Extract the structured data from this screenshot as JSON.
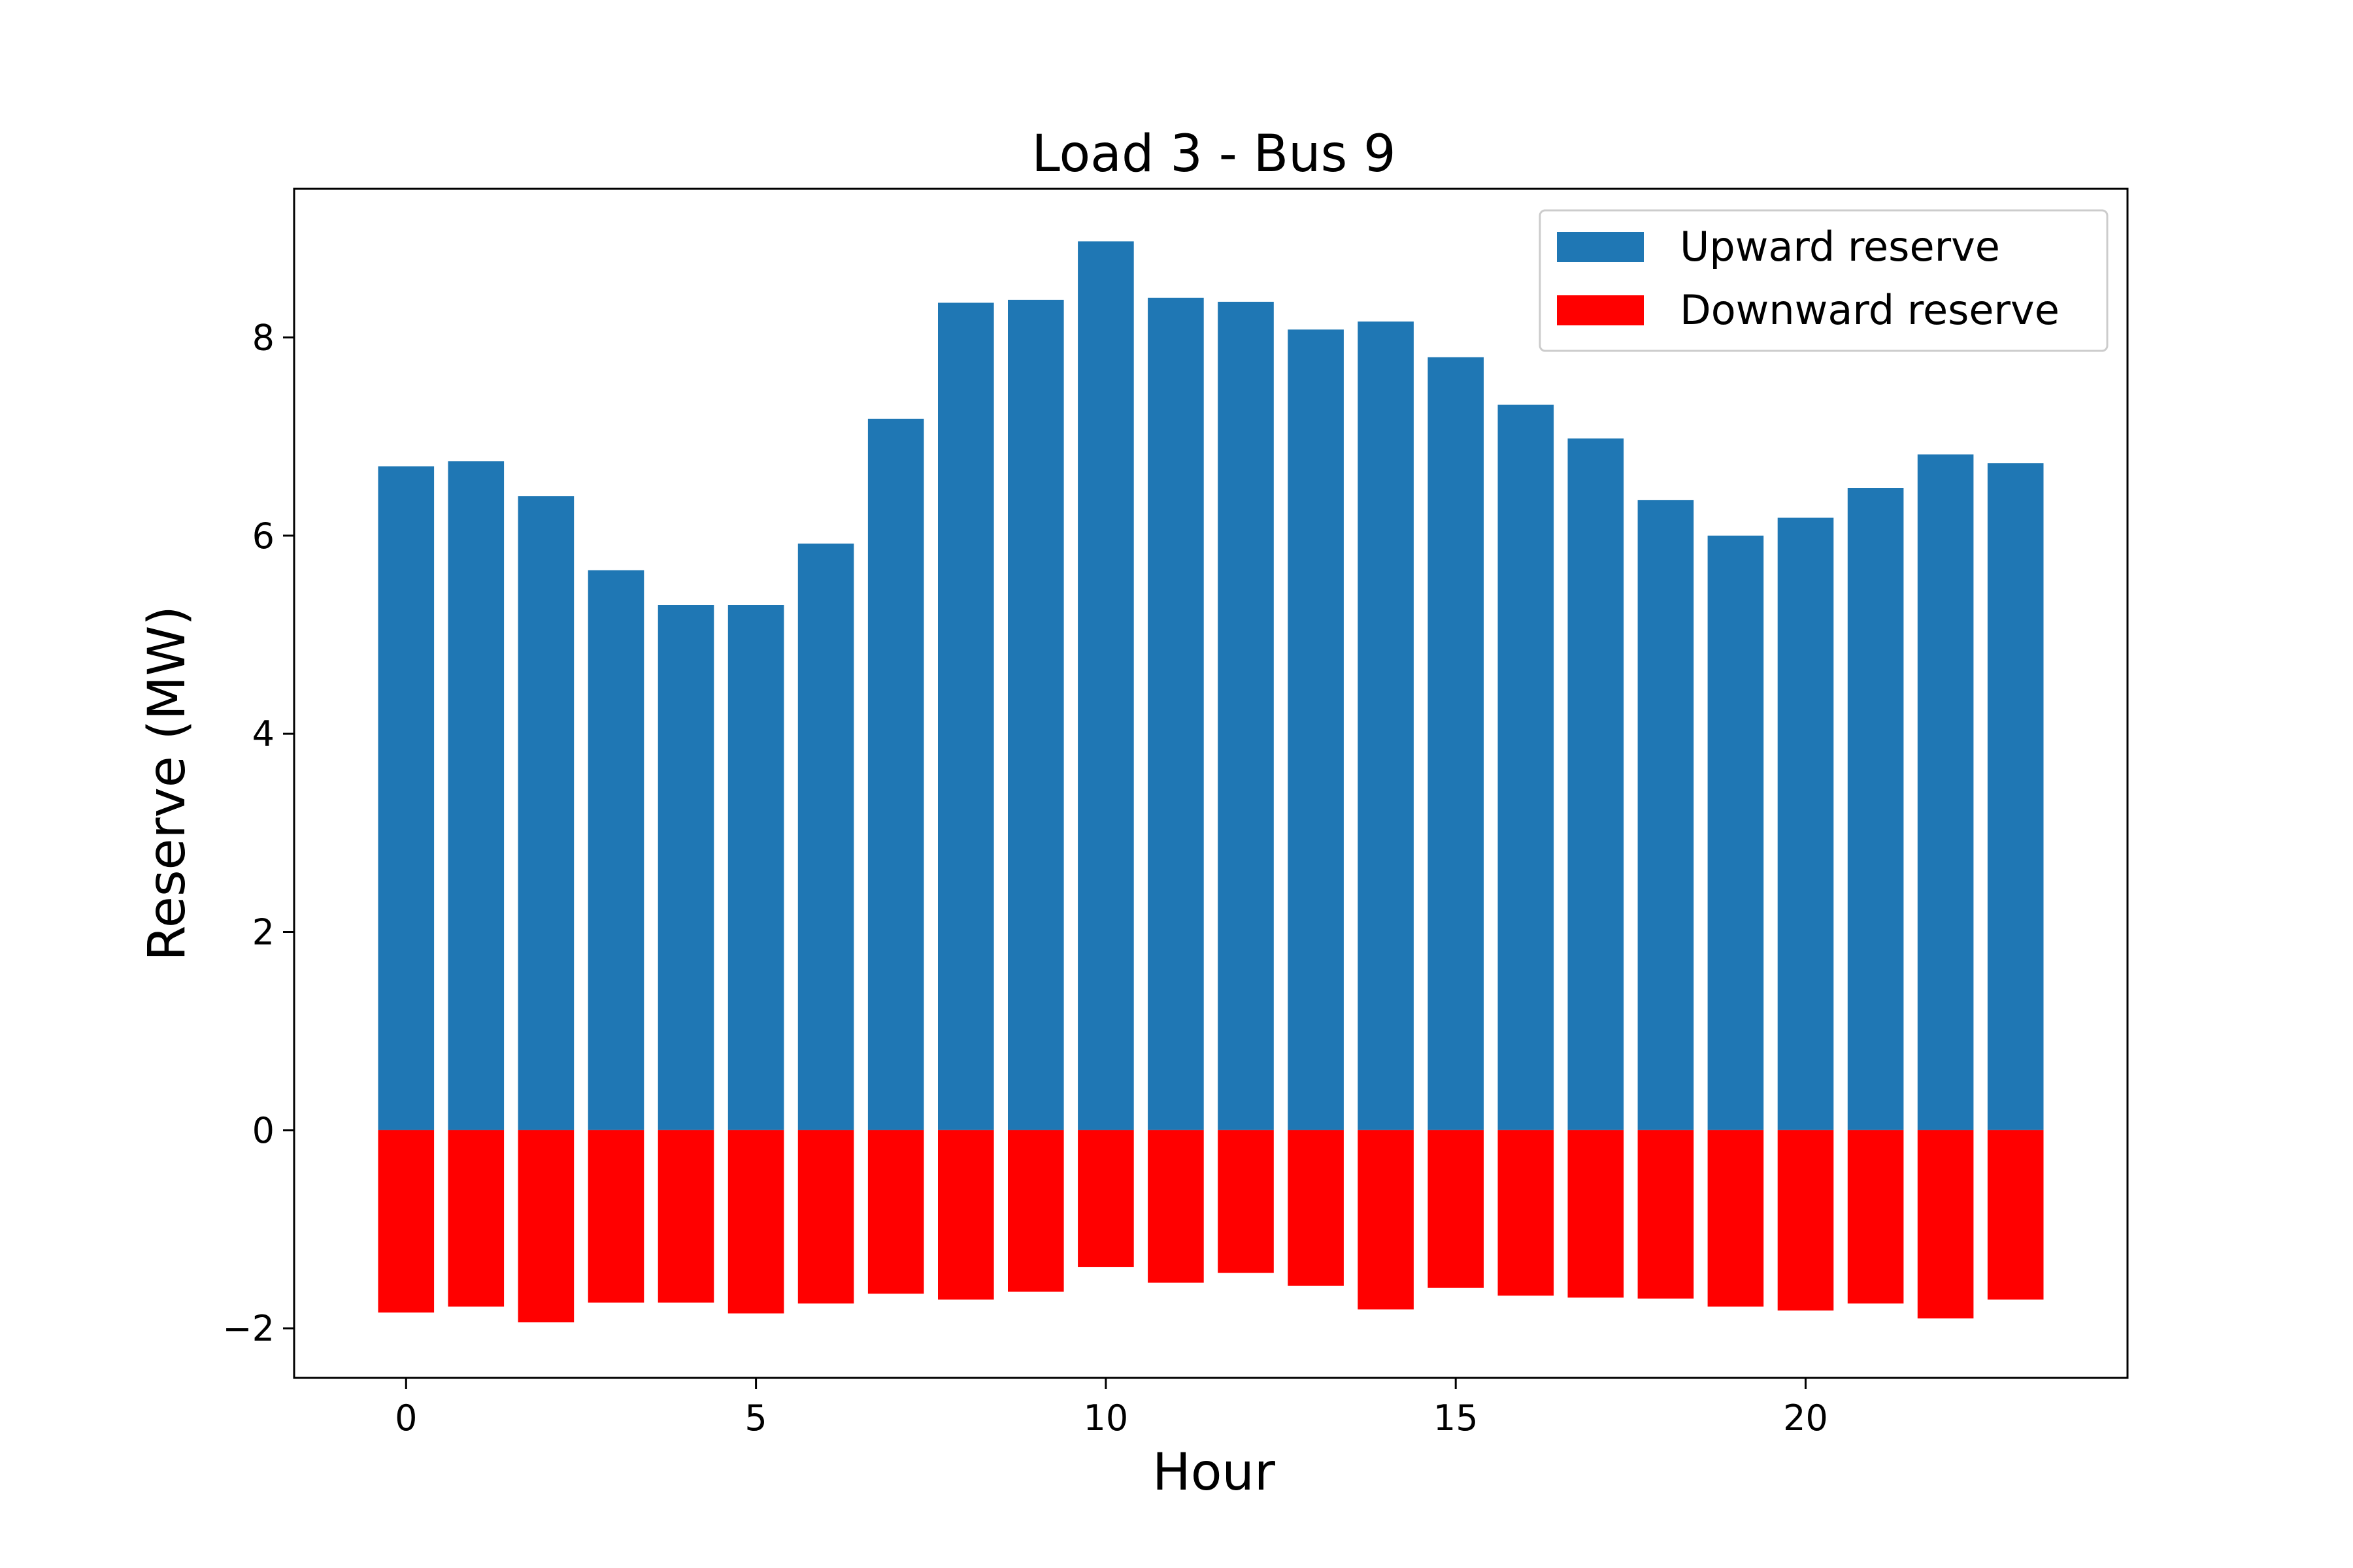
{
  "chart_data": {
    "type": "bar",
    "title": "Load 3 - Bus 9",
    "xlabel": "Hour",
    "ylabel": "Reserve (MW)",
    "x": [
      0,
      1,
      2,
      3,
      4,
      5,
      6,
      7,
      8,
      9,
      10,
      11,
      12,
      13,
      14,
      15,
      16,
      17,
      18,
      19,
      20,
      21,
      22,
      23
    ],
    "xticks": [
      0,
      5,
      10,
      15,
      20
    ],
    "xtick_labels": [
      "0",
      "5",
      "10",
      "15",
      "20"
    ],
    "yticks": [
      -2,
      0,
      2,
      4,
      6,
      8
    ],
    "ytick_labels": [
      "−2",
      "0",
      "2",
      "4",
      "6",
      "8"
    ],
    "xlim": [
      -1.6,
      24.6
    ],
    "ylim": [
      -2.5,
      9.5
    ],
    "grid": false,
    "legend_position": "top-right",
    "series": [
      {
        "name": "Upward reserve",
        "color": "#1f77b4",
        "values": [
          6.7,
          6.75,
          6.4,
          5.65,
          5.3,
          5.3,
          5.92,
          7.18,
          8.35,
          8.38,
          8.97,
          8.4,
          8.36,
          8.08,
          8.16,
          7.8,
          7.32,
          6.98,
          6.36,
          6.0,
          6.18,
          6.48,
          6.82,
          6.73
        ]
      },
      {
        "name": "Downward reserve",
        "color": "#ff0000",
        "values": [
          -1.84,
          -1.78,
          -1.94,
          -1.74,
          -1.74,
          -1.85,
          -1.75,
          -1.65,
          -1.71,
          -1.63,
          -1.38,
          -1.54,
          -1.44,
          -1.57,
          -1.81,
          -1.59,
          -1.67,
          -1.69,
          -1.7,
          -1.78,
          -1.82,
          -1.75,
          -1.9,
          -1.71
        ]
      }
    ]
  }
}
